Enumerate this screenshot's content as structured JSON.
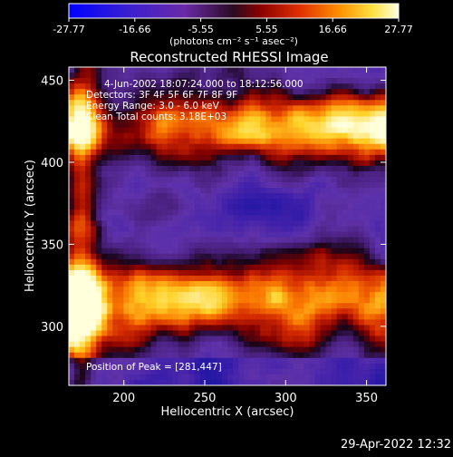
{
  "colorbar": {
    "tick_labels": [
      "-27.77",
      "-16.66",
      "-5.55",
      "5.55",
      "16.66",
      "27.77"
    ],
    "units": "(photons cm⁻² s⁻¹ asec⁻²)"
  },
  "chart_data": {
    "type": "heatmap",
    "title": "Reconstructed RHESSI Image",
    "xlabel": "Heliocentric X (arcsec)",
    "ylabel": "Heliocentric Y (arcsec)",
    "xlim": [
      166,
      362
    ],
    "ylim": [
      264,
      458
    ],
    "xticks": [
      200,
      250,
      300,
      350
    ],
    "yticks": [
      300,
      350,
      400,
      450
    ],
    "color_range": [
      -27.77,
      27.77
    ],
    "colormap": "blue-purple-red-yellow-white",
    "annotations": [
      "4-Jun-2002 18:07:24.000 to 18:12:56.000",
      "Detectors: 3F 4F 5F 6F 7F 8F 9F",
      "Energy Range: 3.0 - 6.0 keV",
      "Clean     Total counts: 3.18E+03"
    ],
    "peak_label": "Position of Peak = [281,447]"
  },
  "footer": {
    "date": "29-Apr-2022 12:32"
  }
}
